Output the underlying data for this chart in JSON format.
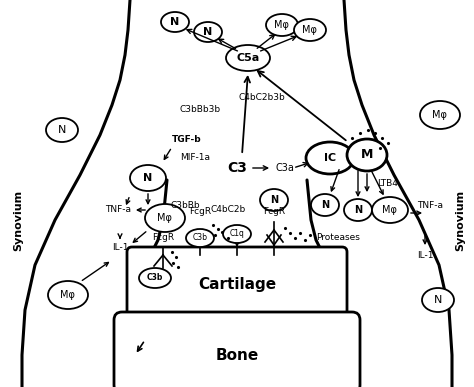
{
  "bg_color": "#ffffff",
  "line_color": "#000000",
  "fig_width": 4.74,
  "fig_height": 3.87,
  "dpi": 100,
  "labels": {
    "synovium_left": "Synovium",
    "synovium_right": "Synovium",
    "cartilage": "Cartilage",
    "bone": "Bone",
    "C5a": "C5a",
    "C3": "C3",
    "C3a": "C3a",
    "C3bBb": "C3bBb",
    "C3bBb3b": "C3bBb3b",
    "C4bC2b": "C4bC2b",
    "C4bC2b3b": "C4bC2b3b",
    "TGF_b": "TGF-b",
    "MIF_1a": "MIF-1a",
    "TNF_a_left": "TNF-a",
    "TNF_a_right": "TNF-a",
    "IL1_left": "IL-1",
    "IL1_right": "IL-1",
    "LTB4": "LTB4",
    "FcgR_left": "FcgR",
    "FcgR_right": "FcgR",
    "Proteases": "Proteases",
    "IC": "IC",
    "M": "M",
    "C3b_left": "C3b",
    "C3b_center": "C3b",
    "C1q": "C1q",
    "N": "N",
    "Mphi": "Mφ"
  }
}
